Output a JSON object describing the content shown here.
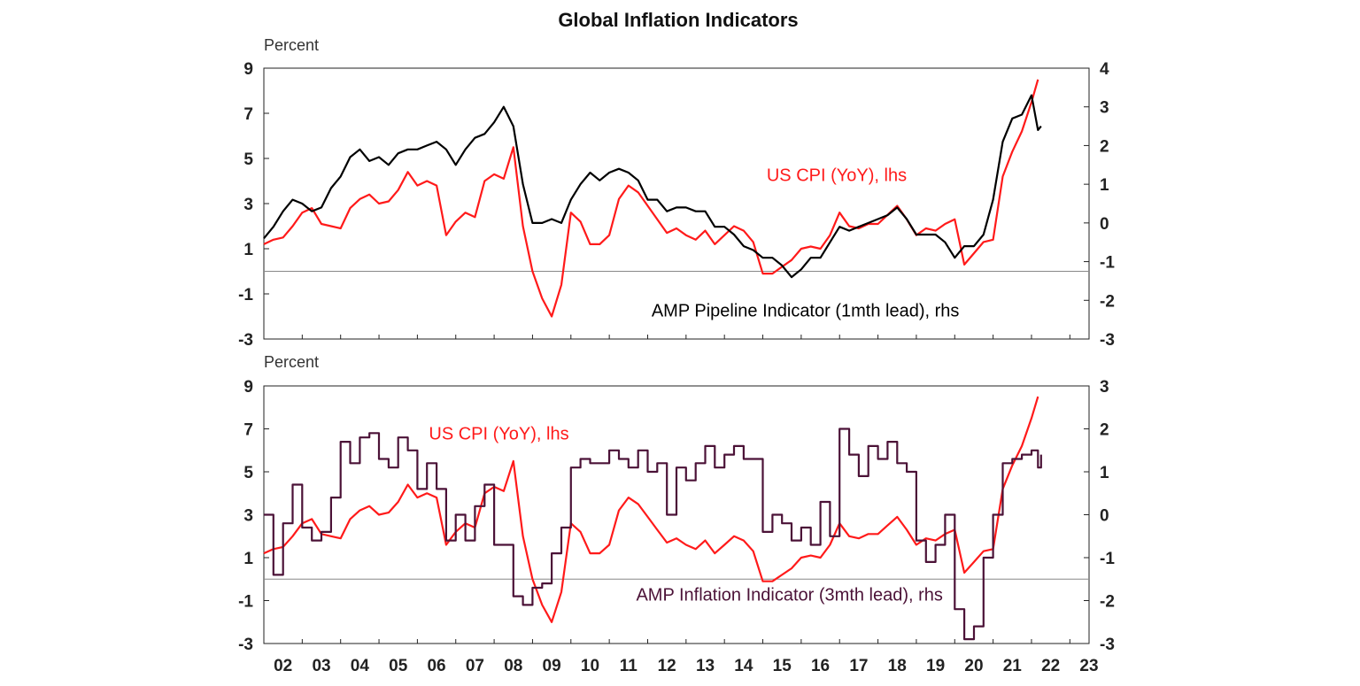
{
  "colors": {
    "cpi": "#ff1a1a",
    "pipeline": "#000000",
    "inflation": "#4b1237",
    "zero_line": "#888888",
    "frame": "#222222"
  },
  "chart_data": {
    "title": "Global Inflation Indicators",
    "x_tick_labels": [
      "02",
      "03",
      "04",
      "05",
      "06",
      "07",
      "08",
      "09",
      "10",
      "11",
      "12",
      "13",
      "14",
      "15",
      "16",
      "17",
      "18",
      "19",
      "20",
      "21",
      "22",
      "23"
    ],
    "xlim": [
      2002.0,
      2023.5
    ],
    "panels": [
      {
        "type": "line",
        "ylabel_left": "Percent",
        "ylim_left": [
          -3,
          9
        ],
        "yticks_left": [
          9,
          7,
          5,
          3,
          1,
          -1,
          -3
        ],
        "ylim_right": [
          -3,
          4
        ],
        "yticks_right": [
          4,
          3,
          2,
          1,
          0,
          -1,
          -2,
          -3
        ],
        "zero_line_rhs": -1.25,
        "series": [
          {
            "name": "US CPI (YoY), lhs",
            "axis": "left",
            "color_key": "cpi",
            "x": [
              2002.0,
              2002.25,
              2002.5,
              2002.75,
              2003.0,
              2003.25,
              2003.5,
              2003.75,
              2004.0,
              2004.25,
              2004.5,
              2004.75,
              2005.0,
              2005.25,
              2005.5,
              2005.75,
              2006.0,
              2006.25,
              2006.5,
              2006.75,
              2007.0,
              2007.25,
              2007.5,
              2007.75,
              2008.0,
              2008.25,
              2008.5,
              2008.75,
              2009.0,
              2009.25,
              2009.5,
              2009.75,
              2010.0,
              2010.25,
              2010.5,
              2010.75,
              2011.0,
              2011.25,
              2011.5,
              2011.75,
              2012.0,
              2012.25,
              2012.5,
              2012.75,
              2013.0,
              2013.25,
              2013.5,
              2013.75,
              2014.0,
              2014.25,
              2014.5,
              2014.75,
              2015.0,
              2015.25,
              2015.5,
              2015.75,
              2016.0,
              2016.25,
              2016.5,
              2016.75,
              2017.0,
              2017.25,
              2017.5,
              2017.75,
              2018.0,
              2018.25,
              2018.5,
              2018.75,
              2019.0,
              2019.25,
              2019.5,
              2019.75,
              2020.0,
              2020.25,
              2020.5,
              2020.75,
              2021.0,
              2021.25,
              2021.5,
              2021.75,
              2022.0,
              2022.17
            ],
            "values": [
              1.2,
              1.4,
              1.5,
              2.0,
              2.6,
              2.8,
              2.1,
              2.0,
              1.9,
              2.8,
              3.2,
              3.4,
              3.0,
              3.1,
              3.6,
              4.4,
              3.8,
              4.0,
              3.8,
              1.6,
              2.2,
              2.6,
              2.4,
              4.0,
              4.3,
              4.1,
              5.5,
              2.0,
              0.0,
              -1.2,
              -2.0,
              -0.6,
              2.6,
              2.2,
              1.2,
              1.2,
              1.6,
              3.2,
              3.8,
              3.5,
              2.9,
              2.3,
              1.7,
              1.9,
              1.6,
              1.4,
              1.8,
              1.2,
              1.6,
              2.0,
              1.8,
              1.3,
              -0.1,
              -0.1,
              0.2,
              0.5,
              1.0,
              1.1,
              1.0,
              1.6,
              2.6,
              2.0,
              1.9,
              2.1,
              2.1,
              2.5,
              2.9,
              2.3,
              1.6,
              1.9,
              1.8,
              2.1,
              2.3,
              0.3,
              0.8,
              1.3,
              1.4,
              4.2,
              5.3,
              6.2,
              7.5,
              8.5
            ]
          },
          {
            "name": "AMP Pipeline Indicator (1mth lead), rhs",
            "axis": "right",
            "color_key": "pipeline",
            "x": [
              2002.0,
              2002.25,
              2002.5,
              2002.75,
              2003.0,
              2003.25,
              2003.5,
              2003.75,
              2004.0,
              2004.25,
              2004.5,
              2004.75,
              2005.0,
              2005.25,
              2005.5,
              2005.75,
              2006.0,
              2006.25,
              2006.5,
              2006.75,
              2007.0,
              2007.25,
              2007.5,
              2007.75,
              2008.0,
              2008.25,
              2008.5,
              2008.75,
              2009.0,
              2009.25,
              2009.5,
              2009.75,
              2010.0,
              2010.25,
              2010.5,
              2010.75,
              2011.0,
              2011.25,
              2011.5,
              2011.75,
              2012.0,
              2012.25,
              2012.5,
              2012.75,
              2013.0,
              2013.25,
              2013.5,
              2013.75,
              2014.0,
              2014.25,
              2014.5,
              2014.75,
              2015.0,
              2015.25,
              2015.5,
              2015.75,
              2016.0,
              2016.25,
              2016.5,
              2016.75,
              2017.0,
              2017.25,
              2017.5,
              2017.75,
              2018.0,
              2018.25,
              2018.5,
              2018.75,
              2019.0,
              2019.25,
              2019.5,
              2019.75,
              2020.0,
              2020.25,
              2020.5,
              2020.75,
              2021.0,
              2021.25,
              2021.5,
              2021.75,
              2022.0,
              2022.17,
              2022.25
            ],
            "values": [
              -0.4,
              -0.1,
              0.3,
              0.6,
              0.5,
              0.3,
              0.4,
              0.9,
              1.2,
              1.7,
              1.9,
              1.6,
              1.7,
              1.5,
              1.8,
              1.9,
              1.9,
              2.0,
              2.1,
              1.9,
              1.5,
              1.9,
              2.2,
              2.3,
              2.6,
              3.0,
              2.5,
              1.0,
              0.0,
              0.0,
              0.1,
              0.0,
              0.6,
              1.0,
              1.3,
              1.1,
              1.3,
              1.4,
              1.3,
              1.1,
              0.6,
              0.6,
              0.3,
              0.4,
              0.4,
              0.3,
              0.3,
              -0.1,
              -0.1,
              -0.3,
              -0.6,
              -0.7,
              -0.9,
              -0.9,
              -1.1,
              -1.4,
              -1.2,
              -0.9,
              -0.9,
              -0.5,
              -0.1,
              -0.2,
              -0.1,
              0.0,
              0.1,
              0.2,
              0.4,
              0.1,
              -0.3,
              -0.3,
              -0.3,
              -0.5,
              -0.9,
              -0.6,
              -0.6,
              -0.3,
              0.6,
              2.1,
              2.7,
              2.8,
              3.3,
              2.4,
              2.5
            ]
          }
        ],
        "annotations": [
          {
            "text": "US CPI (YoY), lhs",
            "color_key": "cpi",
            "anchor_x": 2015.1,
            "anchor_y_left": 4.0
          },
          {
            "text": "AMP Pipeline Indicator (1mth lead), rhs",
            "color_key": "pipeline",
            "anchor_x": 2012.1,
            "anchor_y_left": -2.0
          }
        ]
      },
      {
        "type": "line",
        "ylabel_left": "Percent",
        "ylim_left": [
          -3,
          9
        ],
        "yticks_left": [
          9,
          7,
          5,
          3,
          1,
          -1,
          -3
        ],
        "ylim_right": [
          -3,
          3
        ],
        "yticks_right": [
          3,
          2,
          1,
          0,
          -1,
          -2,
          -3
        ],
        "zero_line_rhs": -1.5,
        "series": [
          {
            "name": "US CPI (YoY), lhs",
            "axis": "left",
            "color_key": "cpi",
            "x": [
              2002.0,
              2002.25,
              2002.5,
              2002.75,
              2003.0,
              2003.25,
              2003.5,
              2003.75,
              2004.0,
              2004.25,
              2004.5,
              2004.75,
              2005.0,
              2005.25,
              2005.5,
              2005.75,
              2006.0,
              2006.25,
              2006.5,
              2006.75,
              2007.0,
              2007.25,
              2007.5,
              2007.75,
              2008.0,
              2008.25,
              2008.5,
              2008.75,
              2009.0,
              2009.25,
              2009.5,
              2009.75,
              2010.0,
              2010.25,
              2010.5,
              2010.75,
              2011.0,
              2011.25,
              2011.5,
              2011.75,
              2012.0,
              2012.25,
              2012.5,
              2012.75,
              2013.0,
              2013.25,
              2013.5,
              2013.75,
              2014.0,
              2014.25,
              2014.5,
              2014.75,
              2015.0,
              2015.25,
              2015.5,
              2015.75,
              2016.0,
              2016.25,
              2016.5,
              2016.75,
              2017.0,
              2017.25,
              2017.5,
              2017.75,
              2018.0,
              2018.25,
              2018.5,
              2018.75,
              2019.0,
              2019.25,
              2019.5,
              2019.75,
              2020.0,
              2020.25,
              2020.5,
              2020.75,
              2021.0,
              2021.25,
              2021.5,
              2021.75,
              2022.0,
              2022.17
            ],
            "values": [
              1.2,
              1.4,
              1.5,
              2.0,
              2.6,
              2.8,
              2.1,
              2.0,
              1.9,
              2.8,
              3.2,
              3.4,
              3.0,
              3.1,
              3.6,
              4.4,
              3.8,
              4.0,
              3.8,
              1.6,
              2.2,
              2.6,
              2.4,
              4.0,
              4.3,
              4.1,
              5.5,
              2.0,
              0.0,
              -1.2,
              -2.0,
              -0.6,
              2.6,
              2.2,
              1.2,
              1.2,
              1.6,
              3.2,
              3.8,
              3.5,
              2.9,
              2.3,
              1.7,
              1.9,
              1.6,
              1.4,
              1.8,
              1.2,
              1.6,
              2.0,
              1.8,
              1.3,
              -0.1,
              -0.1,
              0.2,
              0.5,
              1.0,
              1.1,
              1.0,
              1.6,
              2.6,
              2.0,
              1.9,
              2.1,
              2.1,
              2.5,
              2.9,
              2.3,
              1.6,
              1.9,
              1.8,
              2.1,
              2.3,
              0.3,
              0.8,
              1.3,
              1.4,
              4.2,
              5.3,
              6.2,
              7.5,
              8.5
            ]
          },
          {
            "name": "AMP Inflation Indicator (3mth lead), rhs",
            "axis": "right",
            "color_key": "inflation",
            "step": true,
            "x": [
              2002.0,
              2002.25,
              2002.5,
              2002.75,
              2003.0,
              2003.25,
              2003.5,
              2003.75,
              2004.0,
              2004.25,
              2004.5,
              2004.75,
              2005.0,
              2005.25,
              2005.5,
              2005.75,
              2006.0,
              2006.25,
              2006.5,
              2006.75,
              2007.0,
              2007.25,
              2007.5,
              2007.75,
              2008.0,
              2008.25,
              2008.5,
              2008.75,
              2009.0,
              2009.25,
              2009.5,
              2009.75,
              2010.0,
              2010.25,
              2010.5,
              2010.75,
              2011.0,
              2011.25,
              2011.5,
              2011.75,
              2012.0,
              2012.25,
              2012.5,
              2012.75,
              2013.0,
              2013.25,
              2013.5,
              2013.75,
              2014.0,
              2014.25,
              2014.5,
              2014.75,
              2015.0,
              2015.25,
              2015.5,
              2015.75,
              2016.0,
              2016.25,
              2016.5,
              2016.75,
              2017.0,
              2017.25,
              2017.5,
              2017.75,
              2018.0,
              2018.25,
              2018.5,
              2018.75,
              2019.0,
              2019.25,
              2019.5,
              2019.75,
              2020.0,
              2020.25,
              2020.5,
              2020.75,
              2021.0,
              2021.25,
              2021.5,
              2021.75,
              2022.0,
              2022.17,
              2022.25
            ],
            "values": [
              0.0,
              -1.4,
              -0.2,
              0.7,
              -0.3,
              -0.6,
              -0.4,
              0.4,
              1.7,
              1.2,
              1.8,
              1.9,
              1.3,
              1.1,
              1.8,
              1.5,
              0.6,
              1.2,
              0.6,
              -0.6,
              0.0,
              -0.6,
              0.2,
              0.7,
              -0.7,
              -0.7,
              -1.9,
              -2.1,
              -1.7,
              -1.6,
              -0.9,
              -0.3,
              1.1,
              1.3,
              1.2,
              1.2,
              1.5,
              1.3,
              1.1,
              1.5,
              1.0,
              1.2,
              0.0,
              1.1,
              0.8,
              1.2,
              1.6,
              1.1,
              1.4,
              1.6,
              1.3,
              1.3,
              -0.4,
              0.0,
              -0.2,
              -0.6,
              -0.3,
              -0.7,
              0.3,
              -0.5,
              2.0,
              1.4,
              0.9,
              1.6,
              1.3,
              1.7,
              1.2,
              1.0,
              -0.6,
              -1.1,
              -0.7,
              0.0,
              -2.2,
              -2.9,
              -2.6,
              -1.0,
              0.0,
              1.2,
              1.3,
              1.4,
              1.5,
              1.1,
              1.4
            ]
          }
        ],
        "annotations": [
          {
            "text": "US CPI (YoY), lhs",
            "color_key": "cpi",
            "anchor_x": 2006.3,
            "anchor_y_left": 6.5
          },
          {
            "text": "AMP Inflation Indicator (3mth lead), rhs",
            "color_key": "inflation",
            "anchor_x": 2011.7,
            "anchor_y_left": -1.0
          }
        ]
      }
    ]
  }
}
